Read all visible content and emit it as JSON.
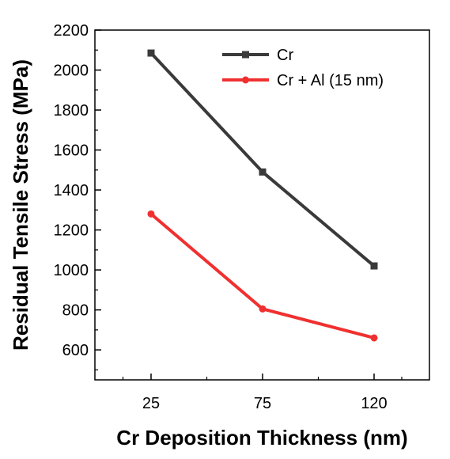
{
  "chart_data": {
    "type": "line",
    "title": "",
    "xlabel": "Cr Deposition Thickness (nm)",
    "ylabel": "Residual Tensile Stress (MPa)",
    "categories": [
      "25",
      "75",
      "120"
    ],
    "ylim": [
      450,
      2200
    ],
    "yticks": [
      600,
      800,
      1000,
      1200,
      1400,
      1600,
      1800,
      2000,
      2200
    ],
    "grid": false,
    "legend_position": "top-right",
    "series": [
      {
        "name": "Cr",
        "color": "#3a3a3a",
        "marker": "square",
        "values": [
          2085,
          1490,
          1020
        ]
      },
      {
        "name": "Cr + Al (15 nm)",
        "color": "#f03030",
        "marker": "circle",
        "values": [
          1280,
          805,
          660
        ]
      }
    ]
  }
}
